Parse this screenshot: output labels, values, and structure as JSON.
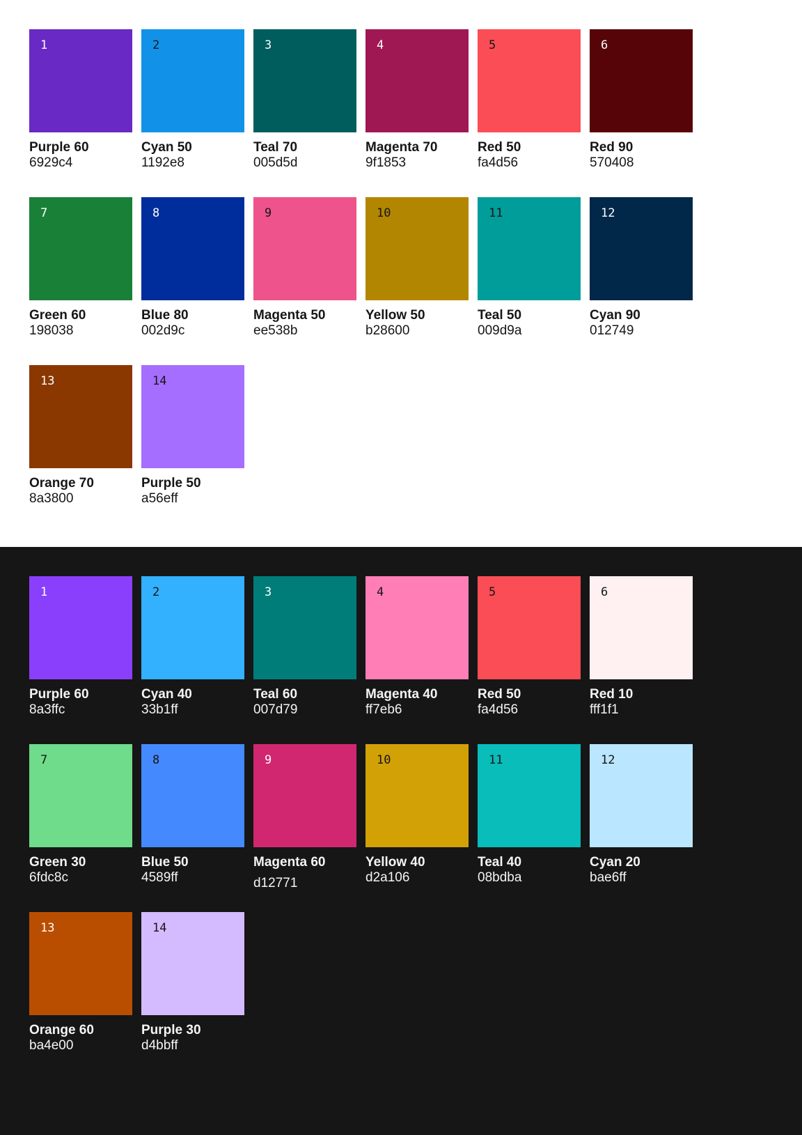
{
  "page": {
    "light_background": "#ffffff",
    "dark_background": "#161616",
    "light_text_color": "#161616",
    "dark_text_color": "#f4f4f4"
  },
  "sections": [
    {
      "id": "light",
      "theme": "light",
      "background": "#ffffff",
      "text_color": "#161616",
      "swatches": [
        {
          "index": "1",
          "name": "Purple 60",
          "hex": "6929c4",
          "color": "#6929c4",
          "number_color": "#ffffff"
        },
        {
          "index": "2",
          "name": "Cyan 50",
          "hex": "1192e8",
          "color": "#1192e8",
          "number_color": "#161616"
        },
        {
          "index": "3",
          "name": "Teal 70",
          "hex": "005d5d",
          "color": "#005d5d",
          "number_color": "#ffffff"
        },
        {
          "index": "4",
          "name": "Magenta 70",
          "hex": "9f1853",
          "color": "#9f1853",
          "number_color": "#ffffff"
        },
        {
          "index": "5",
          "name": "Red 50",
          "hex": "fa4d56",
          "color": "#fa4d56",
          "number_color": "#161616"
        },
        {
          "index": "6",
          "name": "Red 90",
          "hex": "570408",
          "color": "#570408",
          "number_color": "#ffffff"
        },
        {
          "index": "7",
          "name": "Green 60",
          "hex": "198038",
          "color": "#198038",
          "number_color": "#ffffff"
        },
        {
          "index": "8",
          "name": "Blue 80",
          "hex": "002d9c",
          "color": "#002d9c",
          "number_color": "#ffffff"
        },
        {
          "index": "9",
          "name": "Magenta 50",
          "hex": "ee538b",
          "color": "#ee538b",
          "number_color": "#161616"
        },
        {
          "index": "10",
          "name": "Yellow 50",
          "hex": "b28600",
          "color": "#b28600",
          "number_color": "#161616"
        },
        {
          "index": "11",
          "name": "Teal 50",
          "hex": "009d9a",
          "color": "#009d9a",
          "number_color": "#161616"
        },
        {
          "index": "12",
          "name": "Cyan 90",
          "hex": "012749",
          "color": "#012749",
          "number_color": "#ffffff"
        },
        {
          "index": "13",
          "name": "Orange 70",
          "hex": "8a3800",
          "color": "#8a3800",
          "number_color": "#ffffff"
        },
        {
          "index": "14",
          "name": "Purple 50",
          "hex": "a56eff",
          "color": "#a56eff",
          "number_color": "#161616"
        }
      ]
    },
    {
      "id": "dark",
      "theme": "dark",
      "background": "#161616",
      "text_color": "#f4f4f4",
      "swatches": [
        {
          "index": "1",
          "name": "Purple 60",
          "hex": "8a3ffc",
          "color": "#8a3ffc",
          "number_color": "#ffffff"
        },
        {
          "index": "2",
          "name": "Cyan 40",
          "hex": "33b1ff",
          "color": "#33b1ff",
          "number_color": "#161616"
        },
        {
          "index": "3",
          "name": "Teal 60",
          "hex": "007d79",
          "color": "#007d79",
          "number_color": "#ffffff"
        },
        {
          "index": "4",
          "name": "Magenta 40",
          "hex": "ff7eb6",
          "color": "#ff7eb6",
          "number_color": "#161616"
        },
        {
          "index": "5",
          "name": "Red 50",
          "hex": "fa4d56",
          "color": "#fa4d56",
          "number_color": "#161616"
        },
        {
          "index": "6",
          "name": "Red 10",
          "hex": "fff1f1",
          "color": "#fff1f1",
          "number_color": "#161616"
        },
        {
          "index": "7",
          "name": "Green 30",
          "hex": "6fdc8c",
          "color": "#6fdc8c",
          "number_color": "#161616"
        },
        {
          "index": "8",
          "name": "Blue 50",
          "hex": "4589ff",
          "color": "#4589ff",
          "number_color": "#161616"
        },
        {
          "index": "9",
          "name": "Magenta 60",
          "hex": "d12771",
          "color": "#d12771",
          "number_color": "#ffffff",
          "hex_offset": true
        },
        {
          "index": "10",
          "name": "Yellow 40",
          "hex": "d2a106",
          "color": "#d2a106",
          "number_color": "#161616"
        },
        {
          "index": "11",
          "name": "Teal 40",
          "hex": "08bdba",
          "color": "#08bdba",
          "number_color": "#161616"
        },
        {
          "index": "12",
          "name": "Cyan 20",
          "hex": "bae6ff",
          "color": "#bae6ff",
          "number_color": "#161616"
        },
        {
          "index": "13",
          "name": "Orange 60",
          "hex": "ba4e00",
          "color": "#ba4e00",
          "number_color": "#ffffff"
        },
        {
          "index": "14",
          "name": "Purple 30",
          "hex": "d4bbff",
          "color": "#d4bbff",
          "number_color": "#161616"
        }
      ]
    }
  ]
}
